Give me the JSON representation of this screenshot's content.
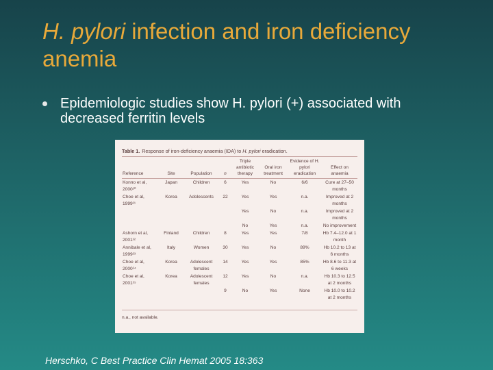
{
  "slide": {
    "title_italic": "H. pylori",
    "title_rest": " infection and iron deficiency anemia",
    "bullet": "Epidemiologic studies show H. pylori (+) associated with decreased ferritin levels",
    "citation": "Herschko, C Best Practice Clin Hemat 2005 18:363"
  },
  "table": {
    "number": "Table 1.",
    "caption_pre": "Response of iron-deficiency anaemia (IDA) to ",
    "caption_em": "H. pylori",
    "caption_post": " eradication.",
    "headers": [
      "Reference",
      "Site",
      "Population",
      "n",
      "Triple antibiotic therapy",
      "Oral iron treatment",
      "Evidence of H. pylori eradication",
      "Effect on anaemia"
    ],
    "rows": [
      [
        "Konno et al, 2000²⁰",
        "Japan",
        "Children",
        "6",
        "Yes",
        "No",
        "6/6",
        "Cure at 27–50 months"
      ],
      [
        "Choe et al, 1999²¹",
        "Korea",
        "Adolescents",
        "22",
        "Yes",
        "Yes",
        "n.a.",
        "Improved at 2 months"
      ],
      [
        "",
        "",
        "",
        "",
        "Yes",
        "No",
        "n.a.",
        "Improved at 2 months"
      ],
      [
        "",
        "",
        "",
        "",
        "No",
        "Yes",
        "n.a.",
        "No improvement"
      ],
      [
        "Ashorn et al, 2001²²",
        "Finland",
        "Children",
        "8",
        "Yes",
        "Yes",
        "7/8",
        "Hb 7.4–12.0 at 1 month"
      ],
      [
        "Annibale et al, 1999²³",
        "Italy",
        "Women",
        "30",
        "Yes",
        "No",
        "89%",
        "Hb 10.2 to 13 at 6 months"
      ],
      [
        "Choe et al, 2000²⁴",
        "Korea",
        "Adolescent females",
        "14",
        "Yes",
        "Yes",
        "85%",
        "Hb 8.6 to 11.3 at 6 weeks"
      ],
      [
        "Choe et al, 2001²⁵",
        "Korea",
        "Adolescent females",
        "12",
        "Yes",
        "No",
        "n.a.",
        "Hb 10.3 to 12.5 at 2 months"
      ],
      [
        "",
        "",
        "",
        "9",
        "No",
        "Yes",
        "None",
        "Hb 10.0 to 10.2 at 2 months"
      ]
    ],
    "footnote": "n.a., not available."
  }
}
